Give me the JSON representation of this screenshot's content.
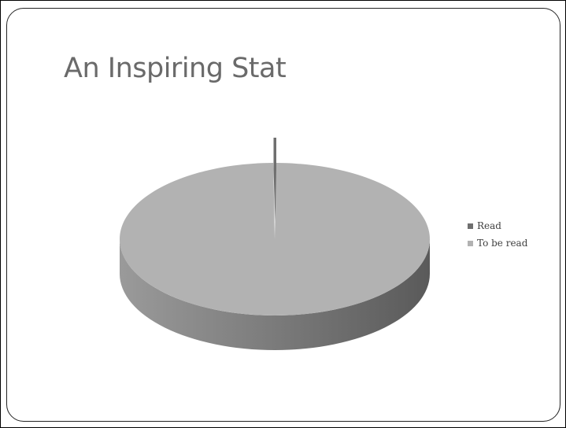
{
  "slide": {
    "title": "An Inspiring Stat"
  },
  "chart_data": {
    "type": "pie",
    "style": "3d",
    "title": "An Inspiring Stat",
    "categories": [
      "Read",
      "To be read"
    ],
    "values": [
      0.3,
      99.7
    ],
    "colors": [
      "#6f6f6f",
      "#b2b2b2"
    ],
    "legend": {
      "position": "right",
      "entries": [
        "Read",
        "To be read"
      ]
    },
    "exploded": "Read"
  }
}
